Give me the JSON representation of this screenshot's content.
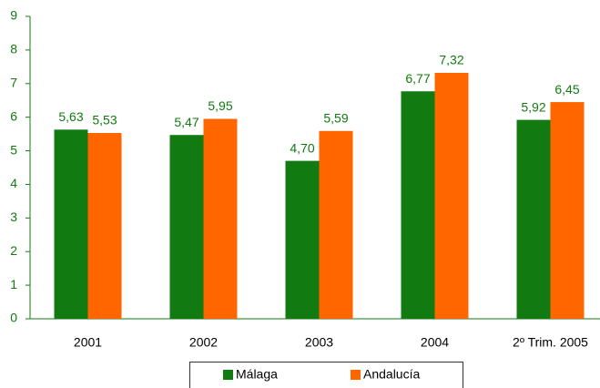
{
  "chart_data": {
    "type": "bar",
    "categories": [
      "2001",
      "2002",
      "2003",
      "2004",
      "2º Trim. 2005"
    ],
    "series": [
      {
        "name": "Málaga",
        "color": "#117a11",
        "values": [
          5.63,
          5.47,
          4.7,
          6.77,
          5.92
        ],
        "value_labels": [
          "5,63",
          "5,47",
          "4,70",
          "6,77",
          "5,92"
        ]
      },
      {
        "name": "Andalucía",
        "color": "#ff6600",
        "values": [
          5.53,
          5.95,
          5.59,
          7.32,
          6.45
        ],
        "value_labels": [
          "5,53",
          "5,95",
          "5,59",
          "7,32",
          "6,45"
        ]
      }
    ],
    "ylim": [
      0,
      9
    ],
    "yticks": [
      0,
      1,
      2,
      3,
      4,
      5,
      6,
      7,
      8,
      9
    ],
    "grid": false
  }
}
